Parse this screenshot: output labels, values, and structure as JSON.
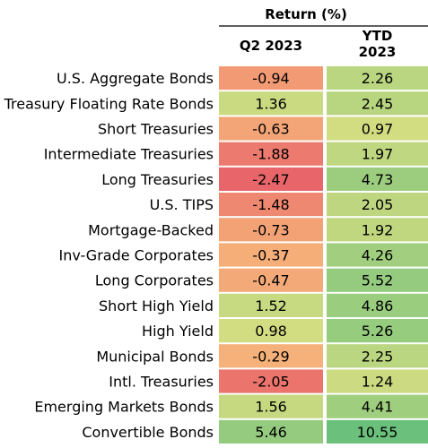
{
  "chart_data": {
    "type": "heatmap",
    "title": "Return (%)",
    "columns": [
      {
        "label_lines": [
          "Q2 2023"
        ]
      },
      {
        "label_lines": [
          "YTD",
          "2023"
        ]
      }
    ],
    "rows": [
      {
        "label": "U.S. Aggregate Bonds",
        "q2": "-0.94",
        "ytd": "2.26"
      },
      {
        "label": "Treasury Floating Rate Bonds",
        "q2": "1.36",
        "ytd": "2.45"
      },
      {
        "label": "Short Treasuries",
        "q2": "-0.63",
        "ytd": "0.97"
      },
      {
        "label": "Intermediate Treasuries",
        "q2": "-1.88",
        "ytd": "1.97"
      },
      {
        "label": "Long Treasuries",
        "q2": "-2.47",
        "ytd": "4.73"
      },
      {
        "label": "U.S. TIPS",
        "q2": "-1.48",
        "ytd": "2.05"
      },
      {
        "label": "Mortgage-Backed",
        "q2": "-0.73",
        "ytd": "1.92"
      },
      {
        "label": "Inv-Grade Corporates",
        "q2": "-0.37",
        "ytd": "4.26"
      },
      {
        "label": "Long Corporates",
        "q2": "-0.47",
        "ytd": "5.52"
      },
      {
        "label": "Short High Yield",
        "q2": "1.52",
        "ytd": "4.86"
      },
      {
        "label": "High Yield",
        "q2": "0.98",
        "ytd": "5.26"
      },
      {
        "label": "Municipal Bonds",
        "q2": "-0.29",
        "ytd": "2.25"
      },
      {
        "label": "Intl. Treasuries",
        "q2": "-2.05",
        "ytd": "1.24"
      },
      {
        "label": "Emerging Markets Bonds",
        "q2": "1.56",
        "ytd": "4.41"
      },
      {
        "label": "Convertible Bonds",
        "q2": "5.46",
        "ytd": "10.55"
      }
    ],
    "color_scale": {
      "low": "#e8666a",
      "mid": "#ffe884",
      "high": "#63be7b",
      "domain": [
        -2.47,
        10.55
      ]
    },
    "header_rule_color": "#000000"
  }
}
